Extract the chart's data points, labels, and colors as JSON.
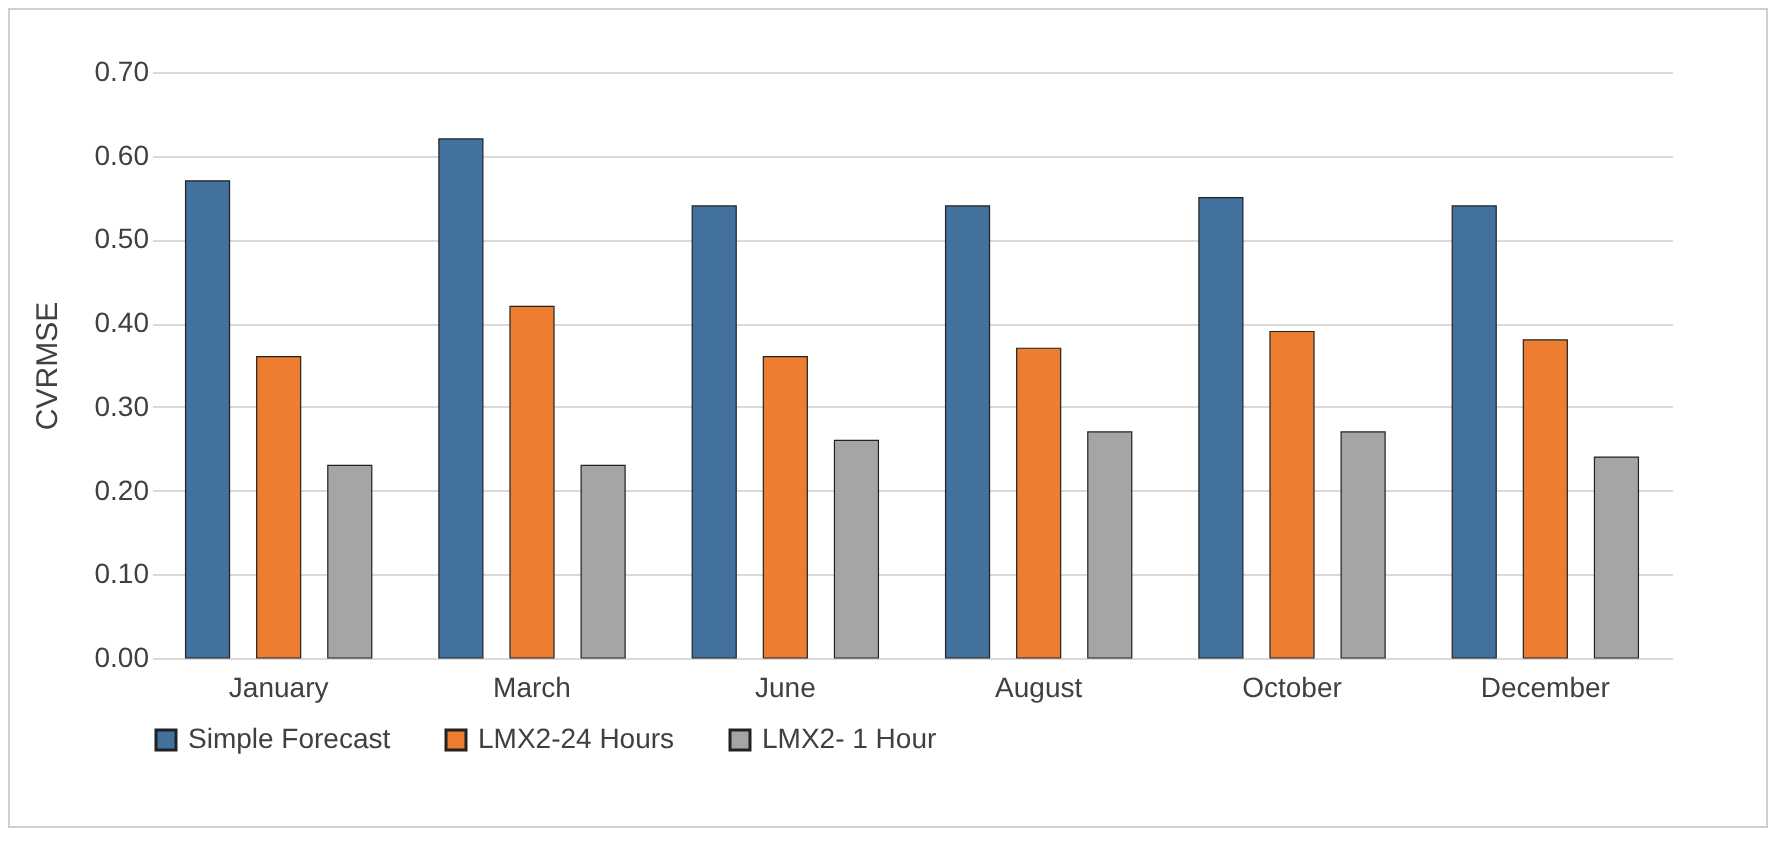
{
  "chart_data": {
    "type": "bar",
    "ylabel": "CVRMSE",
    "categories": [
      "January",
      "March",
      "June",
      "August",
      "October",
      "December"
    ],
    "series": [
      {
        "name": "Simple Forecast",
        "color": "#41719c",
        "values": [
          0.57,
          0.62,
          0.54,
          0.54,
          0.55,
          0.54
        ]
      },
      {
        "name": "LMX2-24 Hours",
        "color": "#ed7d31",
        "values": [
          0.36,
          0.42,
          0.36,
          0.37,
          0.39,
          0.38
        ]
      },
      {
        "name": "LMX2- 1 Hour",
        "color": "#a5a5a5",
        "values": [
          0.23,
          0.23,
          0.26,
          0.27,
          0.27,
          0.24
        ]
      }
    ],
    "ylim": [
      0,
      0.7
    ],
    "yticks": [
      {
        "value": 0,
        "label": "0.00"
      },
      {
        "value": 0.1,
        "label": "0.10"
      },
      {
        "value": 0.2,
        "label": "0.20"
      },
      {
        "value": 0.3,
        "label": "0.30"
      },
      {
        "value": 0.4,
        "label": "0.40"
      },
      {
        "value": 0.5,
        "label": "0.50"
      },
      {
        "value": 0.6,
        "label": "0.60"
      },
      {
        "value": 0.7,
        "label": "0.70"
      }
    ],
    "grid": "y",
    "legend": "bottom"
  }
}
